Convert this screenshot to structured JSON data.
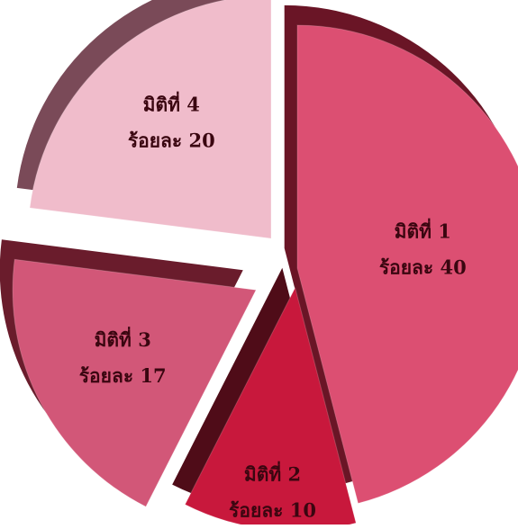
{
  "chart_data": {
    "type": "pie",
    "style": "3d-exploded",
    "categories": [
      "มิติที่ 1",
      "มิติที่ 2",
      "มิติที่ 3",
      "มิติที่ 4"
    ],
    "values": [
      40,
      10,
      17,
      20
    ],
    "value_labels": [
      "ร้อยละ 40",
      "ร้อยละ 10",
      "ร้อยละ 17",
      "ร้อยละ 20"
    ],
    "colors": [
      "#dc4f72",
      "#c8183c",
      "#d25778",
      "#f0bccb"
    ],
    "side_colors": [
      "#6a1526",
      "#4f0c18",
      "#6a1c2c",
      "#7a4a58"
    ],
    "title": "",
    "legend": "none"
  }
}
